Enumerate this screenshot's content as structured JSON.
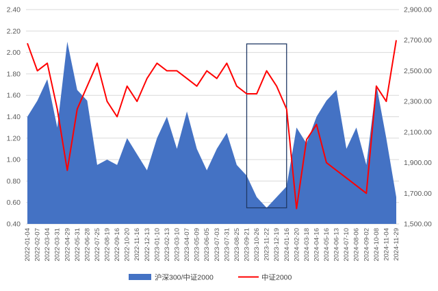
{
  "chart_data": {
    "type": "area+line",
    "title": "",
    "x_labels": [
      "2022-01-04",
      "2022-02-07",
      "2022-03-04",
      "2022-03-31",
      "2022-04-29",
      "2022-05-31",
      "2022-06-28",
      "2022-07-25",
      "2022-08-19",
      "2022-09-16",
      "2022-10-20",
      "2022-11-16",
      "2022-12-13",
      "2023-01-10",
      "2023-02-13",
      "2023-03-10",
      "2023-04-07",
      "2023-05-09",
      "2023-06-05",
      "2023-07-03",
      "2023-07-31",
      "2023-08-25",
      "2023-09-21",
      "2023-10-26",
      "2023-11-22",
      "2023-12-19",
      "2024-01-16",
      "2024-02-20",
      "2024-03-18",
      "2024-04-16",
      "2024-05-16",
      "2024-06-13",
      "2024-07-10",
      "2024-08-06",
      "2024-09-02",
      "2024-10-08",
      "2024-11-04",
      "2024-11-29"
    ],
    "y_left": {
      "min": 0.4,
      "max": 2.4,
      "ticks": [
        "0.40",
        "0.60",
        "0.80",
        "1.00",
        "1.20",
        "1.40",
        "1.60",
        "1.80",
        "2.00",
        "2.20",
        "2.40"
      ]
    },
    "y_right": {
      "min": 1500,
      "max": 2900,
      "ticks": [
        "1,500.00",
        "1,700.00",
        "1,900.00",
        "2,100.00",
        "2,300.00",
        "2,500.00",
        "2,700.00",
        "2,900.00"
      ]
    },
    "series": [
      {
        "name": "沪深300/中证2000",
        "kind": "area",
        "axis": "left",
        "color": "#4472C4",
        "values": [
          1.4,
          1.55,
          1.75,
          1.3,
          2.1,
          1.65,
          1.55,
          0.95,
          1.0,
          0.95,
          1.2,
          1.05,
          0.9,
          1.2,
          1.4,
          1.1,
          1.45,
          1.1,
          0.9,
          1.1,
          1.25,
          0.95,
          0.85,
          0.65,
          0.55,
          0.65,
          0.75,
          1.3,
          1.15,
          1.4,
          1.55,
          1.65,
          1.1,
          1.3,
          0.95,
          1.7,
          1.2,
          0.65
        ]
      },
      {
        "name": "中证2000",
        "kind": "line",
        "axis": "right",
        "color": "#FF0000",
        "values": [
          2680,
          2500,
          2550,
          2250,
          1850,
          2250,
          2400,
          2550,
          2300,
          2200,
          2400,
          2300,
          2450,
          2550,
          2500,
          2500,
          2450,
          2400,
          2500,
          2450,
          2550,
          2400,
          2350,
          2350,
          2500,
          2400,
          2250,
          1600,
          2050,
          2150,
          1900,
          1850,
          1800,
          1750,
          1700,
          2400,
          2300,
          2700
        ]
      }
    ],
    "annotations": [
      {
        "type": "box",
        "x_from": "2023-09-21",
        "x_to": "2024-01-16",
        "y_left_from": 0.55,
        "y_left_to": 2.08,
        "color": "#1F3864"
      }
    ],
    "legend": {
      "position": "bottom",
      "entries": [
        "沪深300/中证2000",
        "中证2000"
      ]
    },
    "grid": true
  }
}
